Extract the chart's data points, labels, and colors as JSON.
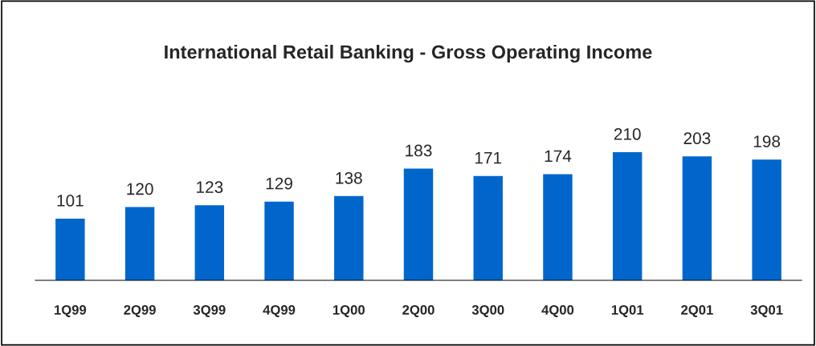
{
  "chart_data": {
    "type": "bar",
    "title": "International Retail Banking - Gross Operating Income",
    "categories": [
      "1Q99",
      "2Q99",
      "3Q99",
      "4Q99",
      "1Q00",
      "2Q00",
      "3Q00",
      "4Q00",
      "1Q01",
      "2Q01",
      "3Q01"
    ],
    "values": [
      101,
      120,
      123,
      129,
      138,
      183,
      171,
      174,
      210,
      203,
      198
    ],
    "color": "#0066cc",
    "data_labels": true
  }
}
